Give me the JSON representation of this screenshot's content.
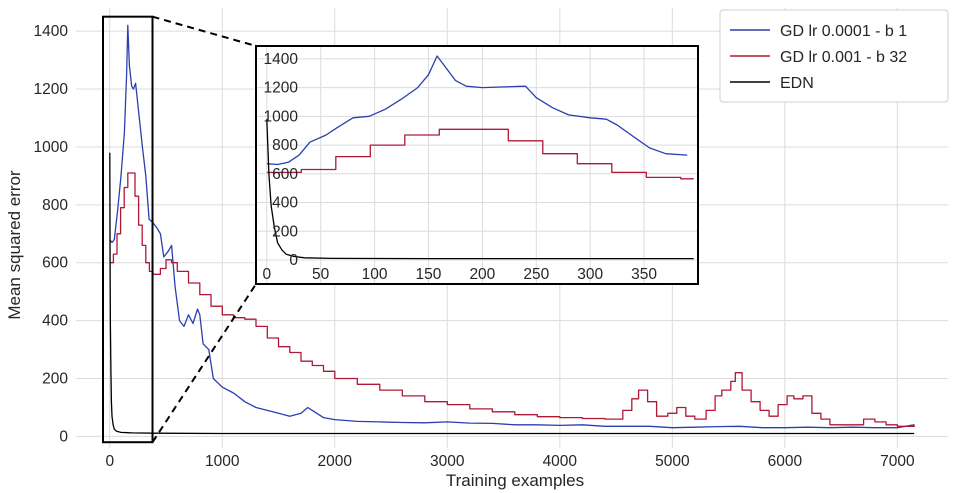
{
  "chart_data": {
    "type": "line",
    "title": "",
    "xlabel": "Training examples",
    "ylabel": "Mean squared error",
    "xlim": [
      -300,
      7450
    ],
    "ylim": [
      -40,
      1480
    ],
    "xticks": [
      0,
      1000,
      2000,
      3000,
      4000,
      5000,
      6000,
      7000
    ],
    "yticks": [
      0,
      200,
      400,
      600,
      800,
      1000,
      1200,
      1400
    ],
    "grid": true,
    "legend_position": "top-right",
    "colors": {
      "blue": "#2b3fb0",
      "red": "#b01838",
      "black": "#000000",
      "grid": "#dcdcdc"
    },
    "series": [
      {
        "name": "GD lr 0.0001 - b 1",
        "color": "#2b3fb0",
        "style": "line",
        "points": [
          [
            0,
            680
          ],
          [
            20,
            670
          ],
          [
            40,
            680
          ],
          [
            70,
            780
          ],
          [
            100,
            900
          ],
          [
            130,
            1050
          ],
          [
            150,
            1250
          ],
          [
            160,
            1420
          ],
          [
            175,
            1280
          ],
          [
            195,
            1210
          ],
          [
            210,
            1200
          ],
          [
            230,
            1220
          ],
          [
            260,
            1110
          ],
          [
            290,
            1000
          ],
          [
            320,
            900
          ],
          [
            350,
            750
          ],
          [
            380,
            740
          ],
          [
            420,
            720
          ],
          [
            450,
            700
          ],
          [
            480,
            620
          ],
          [
            520,
            640
          ],
          [
            550,
            660
          ],
          [
            580,
            520
          ],
          [
            620,
            400
          ],
          [
            660,
            380
          ],
          [
            700,
            420
          ],
          [
            740,
            390
          ],
          [
            780,
            440
          ],
          [
            800,
            420
          ],
          [
            830,
            320
          ],
          [
            880,
            300
          ],
          [
            920,
            200
          ],
          [
            1000,
            170
          ],
          [
            1100,
            150
          ],
          [
            1200,
            120
          ],
          [
            1300,
            100
          ],
          [
            1400,
            90
          ],
          [
            1500,
            80
          ],
          [
            1600,
            70
          ],
          [
            1700,
            80
          ],
          [
            1760,
            100
          ],
          [
            1800,
            90
          ],
          [
            1900,
            65
          ],
          [
            2000,
            58
          ],
          [
            2200,
            52
          ],
          [
            2400,
            50
          ],
          [
            2600,
            48
          ],
          [
            2800,
            47
          ],
          [
            3000,
            50
          ],
          [
            3200,
            46
          ],
          [
            3400,
            45
          ],
          [
            3600,
            40
          ],
          [
            3800,
            40
          ],
          [
            4000,
            38
          ],
          [
            4200,
            40
          ],
          [
            4400,
            35
          ],
          [
            4600,
            35
          ],
          [
            4800,
            35
          ],
          [
            5000,
            30
          ],
          [
            5200,
            32
          ],
          [
            5400,
            34
          ],
          [
            5600,
            35
          ],
          [
            5800,
            30
          ],
          [
            6000,
            30
          ],
          [
            6200,
            32
          ],
          [
            6400,
            30
          ],
          [
            6600,
            32
          ],
          [
            6800,
            30
          ],
          [
            7000,
            30
          ],
          [
            7150,
            40
          ]
        ]
      },
      {
        "name": "GD lr 0.001 - b 32",
        "color": "#b01838",
        "style": "step",
        "points": [
          [
            0,
            600
          ],
          [
            32,
            630
          ],
          [
            64,
            700
          ],
          [
            96,
            790
          ],
          [
            128,
            860
          ],
          [
            160,
            910
          ],
          [
            192,
            910
          ],
          [
            224,
            830
          ],
          [
            256,
            730
          ],
          [
            288,
            660
          ],
          [
            320,
            600
          ],
          [
            352,
            570
          ],
          [
            384,
            560
          ],
          [
            450,
            580
          ],
          [
            500,
            610
          ],
          [
            550,
            600
          ],
          [
            600,
            570
          ],
          [
            700,
            530
          ],
          [
            800,
            490
          ],
          [
            900,
            450
          ],
          [
            1000,
            420
          ],
          [
            1100,
            410
          ],
          [
            1200,
            405
          ],
          [
            1300,
            380
          ],
          [
            1400,
            340
          ],
          [
            1500,
            310
          ],
          [
            1600,
            290
          ],
          [
            1700,
            260
          ],
          [
            1800,
            245
          ],
          [
            1900,
            225
          ],
          [
            2000,
            200
          ],
          [
            2200,
            180
          ],
          [
            2400,
            160
          ],
          [
            2600,
            140
          ],
          [
            2800,
            120
          ],
          [
            3000,
            110
          ],
          [
            3200,
            95
          ],
          [
            3400,
            85
          ],
          [
            3600,
            75
          ],
          [
            3800,
            68
          ],
          [
            4000,
            65
          ],
          [
            4200,
            62
          ],
          [
            4400,
            60
          ],
          [
            4560,
            90
          ],
          [
            4640,
            130
          ],
          [
            4700,
            160
          ],
          [
            4780,
            120
          ],
          [
            4860,
            70
          ],
          [
            4960,
            80
          ],
          [
            5040,
            100
          ],
          [
            5120,
            70
          ],
          [
            5200,
            60
          ],
          [
            5300,
            90
          ],
          [
            5380,
            140
          ],
          [
            5440,
            160
          ],
          [
            5520,
            190
          ],
          [
            5560,
            220
          ],
          [
            5620,
            160
          ],
          [
            5700,
            120
          ],
          [
            5780,
            90
          ],
          [
            5860,
            70
          ],
          [
            5940,
            110
          ],
          [
            6020,
            140
          ],
          [
            6080,
            130
          ],
          [
            6160,
            140
          ],
          [
            6240,
            80
          ],
          [
            6320,
            60
          ],
          [
            6400,
            40
          ],
          [
            6560,
            40
          ],
          [
            6700,
            60
          ],
          [
            6800,
            50
          ],
          [
            6900,
            40
          ],
          [
            7000,
            35
          ],
          [
            7150,
            40
          ]
        ]
      },
      {
        "name": "EDN",
        "color": "#000000",
        "style": "line",
        "points": [
          [
            0,
            980
          ],
          [
            3,
            600
          ],
          [
            6,
            380
          ],
          [
            10,
            230
          ],
          [
            15,
            120
          ],
          [
            20,
            70
          ],
          [
            30,
            40
          ],
          [
            40,
            25
          ],
          [
            60,
            18
          ],
          [
            100,
            14
          ],
          [
            200,
            12
          ],
          [
            400,
            11
          ],
          [
            1000,
            10
          ],
          [
            3000,
            10
          ],
          [
            7150,
            10
          ]
        ]
      }
    ],
    "inset": {
      "xlim": [
        -10,
        400
      ],
      "ylim": [
        0,
        1420
      ],
      "xticks": [
        0,
        50,
        100,
        150,
        200,
        250,
        300,
        350
      ],
      "yticks": [
        0,
        200,
        400,
        600,
        800,
        1000,
        1200,
        1400
      ],
      "series": [
        {
          "name": "GD lr 0.0001 - b 1",
          "color": "#2b3fb0",
          "style": "line",
          "points": [
            [
              0,
              670
            ],
            [
              10,
              665
            ],
            [
              20,
              680
            ],
            [
              30,
              730
            ],
            [
              40,
              820
            ],
            [
              55,
              870
            ],
            [
              65,
              920
            ],
            [
              80,
              990
            ],
            [
              95,
              1000
            ],
            [
              110,
              1050
            ],
            [
              125,
              1120
            ],
            [
              140,
              1200
            ],
            [
              150,
              1290
            ],
            [
              158,
              1420
            ],
            [
              165,
              1350
            ],
            [
              175,
              1250
            ],
            [
              185,
              1210
            ],
            [
              200,
              1200
            ],
            [
              220,
              1205
            ],
            [
              240,
              1210
            ],
            [
              250,
              1130
            ],
            [
              265,
              1060
            ],
            [
              280,
              1010
            ],
            [
              300,
              990
            ],
            [
              315,
              980
            ],
            [
              325,
              940
            ],
            [
              340,
              860
            ],
            [
              355,
              780
            ],
            [
              370,
              740
            ],
            [
              390,
              730
            ]
          ]
        },
        {
          "name": "GD lr 0.001 - b 32",
          "color": "#b01838",
          "style": "step",
          "points": [
            [
              0,
              610
            ],
            [
              32,
              630
            ],
            [
              64,
              720
            ],
            [
              96,
              800
            ],
            [
              128,
              870
            ],
            [
              160,
              910
            ],
            [
              192,
              910
            ],
            [
              224,
              830
            ],
            [
              256,
              740
            ],
            [
              288,
              670
            ],
            [
              320,
              610
            ],
            [
              352,
              575
            ],
            [
              384,
              565
            ],
            [
              396,
              565
            ]
          ]
        },
        {
          "name": "EDN",
          "color": "#000000",
          "style": "line",
          "points": [
            [
              0,
              980
            ],
            [
              2,
              600
            ],
            [
              4,
              380
            ],
            [
              7,
              230
            ],
            [
              10,
              120
            ],
            [
              14,
              70
            ],
            [
              18,
              40
            ],
            [
              25,
              25
            ],
            [
              35,
              15
            ],
            [
              60,
              11
            ],
            [
              150,
              10
            ],
            [
              396,
              10
            ]
          ]
        }
      ]
    },
    "zoom_box": {
      "x": [
        -60,
        380
      ],
      "y": [
        -20,
        1450
      ]
    }
  }
}
